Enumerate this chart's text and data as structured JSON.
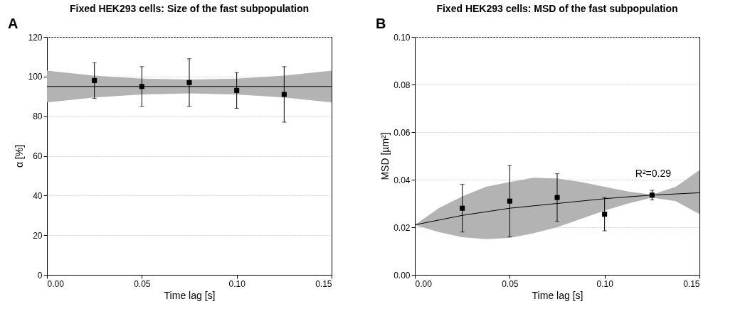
{
  "chart_data": [
    {
      "type": "scatter",
      "title": "Fixed HEK293 cells: Size of the fast subpopulation",
      "xlabel": "Time lag [s]",
      "ylabel": "α [%]",
      "annotations": [
        "A"
      ],
      "xlim": [
        0,
        0.15
      ],
      "xticks": [
        {
          "value": 0,
          "label": "0.00"
        },
        {
          "value": 0.05,
          "label": "0.05"
        },
        {
          "value": 0.1,
          "label": "0.10"
        },
        {
          "value": 0.15,
          "label": "0.15"
        }
      ],
      "ylim": [
        0,
        120
      ],
      "yticks": [
        0,
        20,
        40,
        60,
        80,
        100,
        120
      ],
      "grid": "y",
      "series": [
        {
          "type": "line",
          "color": "#000000",
          "x": [
            0,
            0.025,
            0.05,
            0.075,
            0.1,
            0.125,
            0.15
          ],
          "values": [
            95,
            95,
            95,
            95,
            95,
            95,
            95
          ],
          "lower": [
            87,
            89.5,
            91,
            91.5,
            91,
            89.5,
            87
          ],
          "upper": [
            103,
            100.5,
            99,
            98.5,
            99,
            100.5,
            103
          ]
        },
        {
          "marker": "square",
          "color": "#000000",
          "x": [
            0.025,
            0.05,
            0.075,
            0.1,
            0.125
          ],
          "values": [
            98,
            95,
            97,
            93,
            91
          ],
          "errors": [
            [
              89,
              107
            ],
            [
              85,
              105
            ],
            [
              85,
              109
            ],
            [
              84,
              102
            ],
            [
              77,
              105
            ]
          ]
        }
      ]
    },
    {
      "type": "scatter",
      "title": "Fixed HEK293 cells: MSD of the fast subpopulation",
      "xlabel": "Time lag [s]",
      "ylabel": "MSD [µm²]",
      "annotations": [
        "B",
        "R²=0.29"
      ],
      "xlim": [
        0,
        0.15
      ],
      "xticks": [
        {
          "value": 0,
          "label": "0.00"
        },
        {
          "value": 0.05,
          "label": "0.05"
        },
        {
          "value": 0.1,
          "label": "0.10"
        },
        {
          "value": 0.15,
          "label": "0.15"
        }
      ],
      "ylim": [
        0,
        0.1
      ],
      "yticks": [
        {
          "value": 0,
          "label": "0.00"
        },
        {
          "value": 0.02,
          "label": "0.02"
        },
        {
          "value": 0.04,
          "label": "0.04"
        },
        {
          "value": 0.06,
          "label": "0.06"
        },
        {
          "value": 0.08,
          "label": "0.08"
        },
        {
          "value": 0.1,
          "label": "0.10"
        }
      ],
      "grid": "y",
      "series": [
        {
          "type": "line",
          "color": "#000000",
          "x": [
            0,
            0.0125,
            0.025,
            0.0375,
            0.05,
            0.0625,
            0.075,
            0.0875,
            0.1,
            0.1125,
            0.125,
            0.1375,
            0.15
          ],
          "values": [
            0.021,
            0.023,
            0.025,
            0.0265,
            0.028,
            0.029,
            0.03,
            0.031,
            0.032,
            0.0328,
            0.0335,
            0.034,
            0.0345
          ],
          "lower": [
            0.021,
            0.018,
            0.0158,
            0.015,
            0.0155,
            0.0175,
            0.02,
            0.0235,
            0.027,
            0.03,
            0.0325,
            0.031,
            0.0255
          ],
          "upper": [
            0.021,
            0.028,
            0.033,
            0.037,
            0.039,
            0.0408,
            0.0405,
            0.039,
            0.037,
            0.035,
            0.0337,
            0.037,
            0.044
          ]
        },
        {
          "marker": "square",
          "color": "#000000",
          "x": [
            0.025,
            0.05,
            0.075,
            0.1,
            0.125
          ],
          "values": [
            0.028,
            0.031,
            0.0325,
            0.0255,
            0.0335
          ],
          "errors": [
            [
              0.018,
              0.038
            ],
            [
              0.016,
              0.046
            ],
            [
              0.0225,
              0.0425
            ],
            [
              0.0185,
              0.0325
            ],
            [
              0.0315,
              0.0355
            ]
          ]
        }
      ]
    }
  ]
}
